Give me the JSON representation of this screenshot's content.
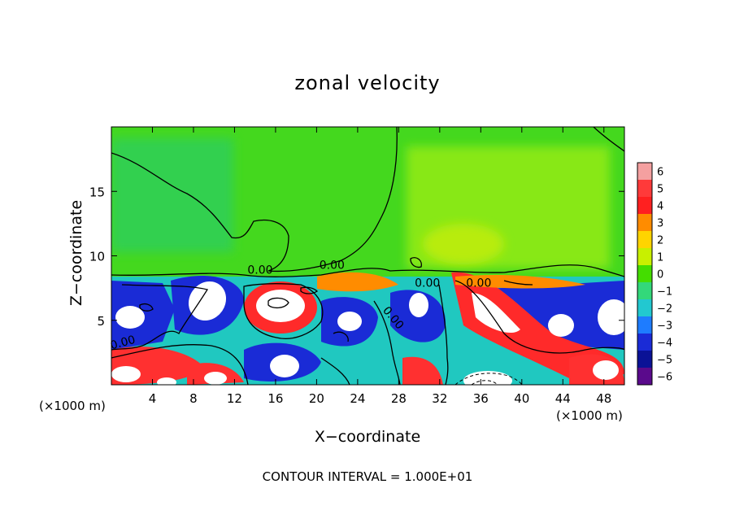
{
  "chart_data": {
    "type": "heatmap",
    "title": "zonal velocity",
    "xlabel": "X−coordinate",
    "ylabel": "Z−coordinate",
    "x_unit_label": "(×1000 m)",
    "footer": "CONTOUR INTERVAL = 1.000E+01",
    "xlim": [
      0,
      50
    ],
    "ylim": [
      0,
      20
    ],
    "x_ticks": [
      4,
      8,
      12,
      16,
      20,
      24,
      28,
      32,
      36,
      40,
      44,
      48
    ],
    "y_ticks": [
      5,
      10,
      15
    ],
    "colorbar": {
      "levels": [
        6,
        5,
        4,
        3,
        2,
        1,
        0,
        -1,
        -2,
        -3,
        -4,
        -5,
        -6
      ],
      "colors": [
        "#f4a0a0",
        "#ff3a3a",
        "#ff2020",
        "#ff8c00",
        "#ffd400",
        "#c8f000",
        "#44dd00",
        "#33d87a",
        "#22c8d0",
        "#1e7cff",
        "#1a2bd6",
        "#0a1296",
        "#5a0a8c"
      ]
    },
    "contour_labels": [
      {
        "text": "0.00",
        "x": 14.5,
        "z": 8.6
      },
      {
        "text": "0.00",
        "x": 21.5,
        "z": 9.0
      },
      {
        "text": "0.00",
        "x": 30.8,
        "z": 7.6
      },
      {
        "text": "0.00",
        "x": 35.8,
        "z": 7.6
      },
      {
        "text": "0.00",
        "x": 27.2,
        "z": 5.0
      },
      {
        "text": "0.00",
        "x": 1.2,
        "z": 3.0
      }
    ]
  }
}
